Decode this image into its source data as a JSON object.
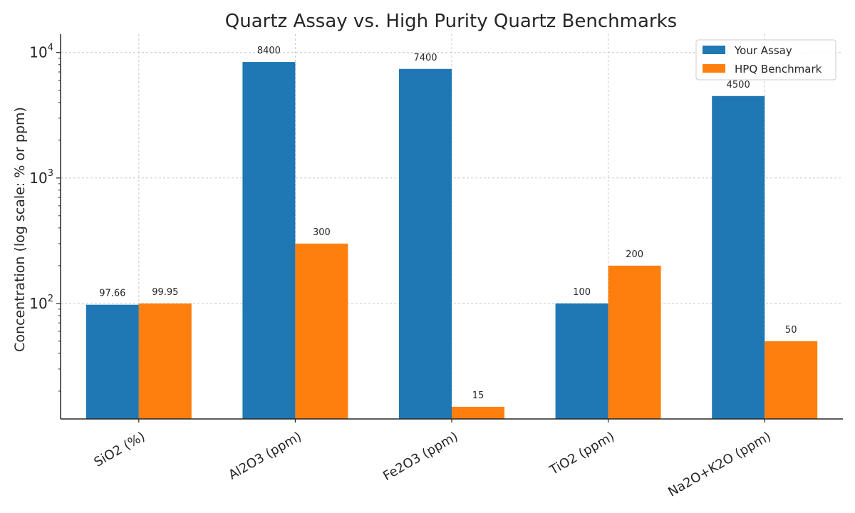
{
  "chart_data": {
    "type": "bar",
    "title": "Quartz Assay vs. High Purity Quartz Benchmarks",
    "xlabel": "",
    "ylabel": "Concentration (log scale: % or ppm)",
    "yscale": "log",
    "ylim": [
      12,
      14000
    ],
    "yticks": [
      {
        "value": 100,
        "base": "10",
        "exp": "2"
      },
      {
        "value": 1000,
        "base": "10",
        "exp": "3"
      },
      {
        "value": 10000,
        "base": "10",
        "exp": "4"
      }
    ],
    "categories": [
      "SiO2 (%)",
      "Al2O3 (ppm)",
      "Fe2O3 (ppm)",
      "TiO2 (ppm)",
      "Na2O+K2O (ppm)"
    ],
    "series": [
      {
        "name": "Your Assay",
        "color": "#1f77b4",
        "values": [
          97.66,
          8400,
          7400,
          100,
          4500
        ],
        "labels": [
          "97.66",
          "8400",
          "7400",
          "100",
          "4500"
        ]
      },
      {
        "name": "HPQ Benchmark",
        "color": "#ff7f0e",
        "values": [
          99.95,
          300,
          15,
          200,
          50
        ],
        "labels": [
          "99.95",
          "300",
          "15",
          "200",
          "50"
        ]
      }
    ],
    "grid": true,
    "legend_position": "top-right"
  }
}
